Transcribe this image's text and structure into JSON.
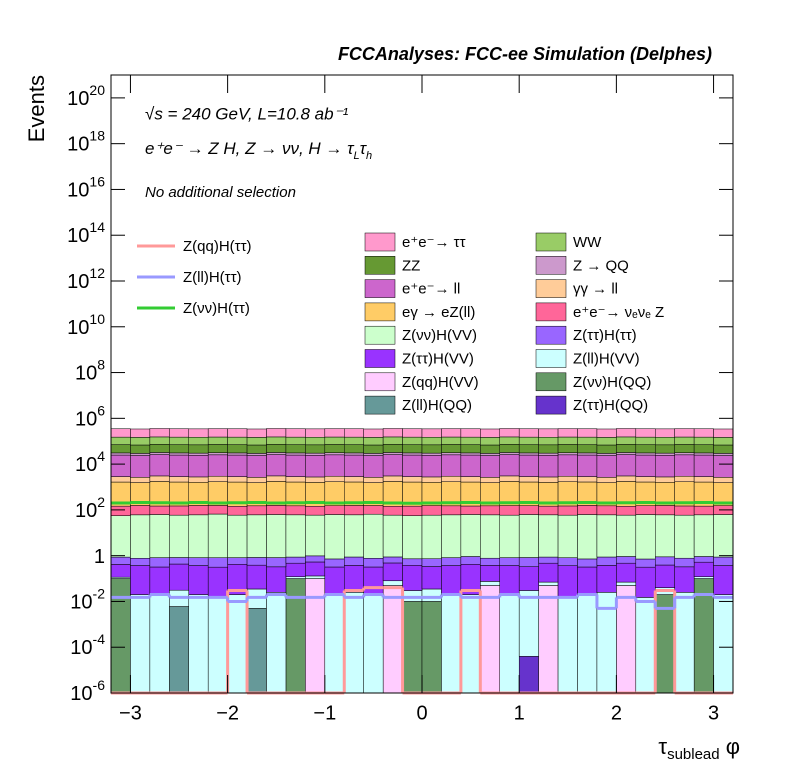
{
  "chart_data": {
    "type": "stacked_histogram",
    "title": "FCCAnalyses: FCC-ee Simulation (Delphes)",
    "annotations": [
      "√s = 240 GeV, L=10.8 ab⁻¹",
      "No additional selection"
    ],
    "process": [
      "e⁺e⁻ → Z H, Z → νν, H → τ",
      "L",
      "τ",
      "h"
    ],
    "x_label": [
      "τ",
      "sublead",
      " φ"
    ],
    "y_label": "Events",
    "log_y": true,
    "xlim": [
      -3.2,
      3.2
    ],
    "ylim": [
      1e-06,
      1e+21
    ],
    "xticks": [
      {
        "value": -3,
        "label": "−3"
      },
      {
        "value": -2,
        "label": "−2"
      },
      {
        "value": -1,
        "label": "−1"
      },
      0,
      1,
      2,
      3
    ],
    "yticks": [
      {
        "value": 1e-06,
        "label": "10^-6"
      },
      {
        "value": 0.0001,
        "label": "10^-4"
      },
      {
        "value": 0.01,
        "label": "10^-2"
      },
      1,
      {
        "value": 100.0,
        "label": "10^2"
      },
      {
        "value": 10000.0,
        "label": "10^4"
      },
      {
        "value": 1000000.0,
        "label": "10^6"
      },
      {
        "value": 100000000.0,
        "label": "10^8"
      },
      {
        "value": 10000000000.0,
        "label": "10^10"
      },
      {
        "value": 1000000000000.0,
        "label": "10^12"
      },
      {
        "value": 100000000000000.0,
        "label": "10^14"
      },
      {
        "value": 1e+16,
        "label": "10^16"
      },
      {
        "value": 1e+18,
        "label": "10^18"
      },
      {
        "value": 1e+20,
        "label": "10^20"
      }
    ],
    "bins": [
      -3.2,
      -3.0,
      -2.8,
      -2.6,
      -2.4,
      -2.2,
      -2.0,
      -1.8,
      -1.6,
      -1.4,
      -1.2,
      -1.0,
      -0.8,
      -0.6,
      -0.4,
      -0.2,
      0,
      0.2,
      0.4,
      0.6,
      0.8,
      1.0,
      1.2,
      1.4,
      1.6,
      1.8,
      2.0,
      2.2,
      2.4,
      2.6,
      2.8,
      3.0,
      3.2
    ],
    "series": [
      {
        "name": "Z(ττ)H(QQ)",
        "color": "#6633cc",
        "values": [
          0,
          0,
          0,
          0,
          0,
          0,
          0,
          0,
          0,
          0,
          0,
          0,
          0,
          0,
          0,
          0,
          0,
          0,
          0,
          0,
          0,
          4e-05,
          0,
          0,
          0,
          0,
          0,
          0,
          0,
          0,
          0,
          0
        ]
      },
      {
        "name": "Z(ll)H(QQ)",
        "color": "#669999",
        "values": [
          0,
          0,
          0,
          0.006,
          0,
          0,
          0,
          0.005,
          0,
          0,
          0,
          0,
          0,
          0,
          0,
          0,
          0,
          0,
          0,
          0,
          0,
          0,
          0,
          0,
          0,
          0,
          0,
          0,
          0,
          0,
          0,
          0
        ]
      },
      {
        "name": "Z(νν)H(QQ)",
        "color": "#669966",
        "values": [
          0.1,
          0,
          0,
          0,
          0,
          0,
          0,
          0,
          0,
          0.1,
          0,
          0,
          0,
          0,
          0,
          0.01,
          0.01,
          0,
          0,
          0,
          0,
          0,
          0,
          0,
          0,
          0,
          0,
          0,
          0.02,
          0,
          0.1,
          0
        ]
      },
      {
        "name": "Z(qq)H(VV)",
        "color": "#ffccff",
        "values": [
          0,
          0,
          0,
          0,
          0,
          0,
          0,
          0,
          0,
          0,
          0.1,
          0,
          0,
          0,
          0.05,
          0,
          0,
          0,
          0,
          0.05,
          0,
          0,
          0.05,
          0,
          0,
          0,
          0.05,
          0,
          0,
          0,
          0,
          0
        ]
      },
      {
        "name": "Z(ll)H(VV)",
        "color": "#ccffff",
        "values": [
          0.015,
          0.02,
          0.02,
          0.025,
          0.02,
          0.015,
          0.02,
          0.03,
          0.025,
          0.02,
          0.03,
          0.02,
          0.025,
          0.02,
          0.03,
          0.02,
          0.025,
          0.02,
          0.02,
          0.025,
          0.02,
          0.03,
          0.02,
          0.015,
          0.02,
          0.025,
          0.02,
          0.015,
          0.02,
          0.025,
          0.02,
          0.02
        ]
      },
      {
        "name": "Z(ττ)H(VV)",
        "color": "#9933ff",
        "values": [
          0.3,
          0.35,
          0.3,
          0.4,
          0.35,
          0.3,
          0.4,
          0.35,
          0.3,
          0.35,
          0.4,
          0.3,
          0.35,
          0.3,
          0.4,
          0.35,
          0.3,
          0.35,
          0.4,
          0.3,
          0.35,
          0.3,
          0.4,
          0.35,
          0.3,
          0.35,
          0.4,
          0.3,
          0.35,
          0.3,
          0.4,
          0.35
        ]
      },
      {
        "name": "Z(ττ)H(ττ)",
        "color": "#9966ff",
        "values": [
          0.45,
          0.4,
          0.5,
          0.4,
          0.45,
          0.5,
          0.4,
          0.45,
          0.5,
          0.4,
          0.45,
          0.4,
          0.5,
          0.45,
          0.4,
          0.35,
          0.4,
          0.45,
          0.5,
          0.4,
          0.45,
          0.5,
          0.4,
          0.45,
          0.4,
          0.5,
          0.45,
          0.4,
          0.5,
          0.45,
          0.4,
          0.5
        ]
      },
      {
        "name": "Z(νν)H(VV)",
        "color": "#ccffcc",
        "values": [
          55,
          60,
          62,
          58,
          60,
          65,
          58,
          60,
          62,
          60,
          58,
          62,
          60,
          64,
          58,
          55,
          58,
          60,
          62,
          60,
          58,
          62,
          60,
          58,
          62,
          60,
          58,
          62,
          60,
          58,
          60,
          62
        ]
      },
      {
        "name": "e⁺e⁻→ νₑνₑ Z",
        "color": "#ff6699",
        "values": [
          90,
          95,
          85,
          90,
          95,
          90,
          85,
          90,
          95,
          90,
          85,
          90,
          95,
          90,
          85,
          90,
          95,
          90,
          85,
          90,
          95,
          90,
          85,
          90,
          95,
          90,
          85,
          90,
          95,
          90,
          85,
          90
        ]
      },
      {
        "name": "eγ → eZ(ll)",
        "color": "#ffcc66",
        "values": [
          1500,
          1400,
          1600,
          1500,
          1450,
          1550,
          1500,
          1400,
          1600,
          1500,
          1450,
          1550,
          1500,
          1400,
          1600,
          1500,
          1450,
          1550,
          1500,
          1400,
          1600,
          1500,
          1450,
          1550,
          1500,
          1400,
          1600,
          1500,
          1450,
          1550,
          1500,
          1400
        ]
      },
      {
        "name": "γγ → ll",
        "color": "#ffcc99",
        "values": [
          1200,
          1100,
          1300,
          1200,
          1150,
          1250,
          1200,
          1100,
          1300,
          1200,
          1150,
          1250,
          1200,
          1100,
          1300,
          1200,
          1150,
          1250,
          1200,
          1100,
          1300,
          1200,
          1150,
          1250,
          1200,
          1100,
          1300,
          1200,
          1150,
          1250,
          1200,
          1100
        ]
      },
      {
        "name": "e⁺e⁻→ ll",
        "color": "#cc66cc",
        "values": [
          22000,
          21000,
          23000,
          22000,
          21500,
          22500,
          22000,
          21000,
          23000,
          22000,
          21500,
          22500,
          22000,
          21000,
          23000,
          22000,
          21500,
          22500,
          22000,
          21000,
          23000,
          22000,
          21500,
          22500,
          22000,
          21000,
          23000,
          22000,
          21500,
          22500,
          22000,
          21000
        ]
      },
      {
        "name": "Z → QQ",
        "color": "#cc99cc",
        "values": [
          6000,
          5800,
          6200,
          6000,
          5900,
          6100,
          6000,
          5800,
          6200,
          6000,
          5900,
          6100,
          6000,
          5800,
          6200,
          6000,
          5900,
          6100,
          6000,
          5800,
          6200,
          6000,
          5900,
          6100,
          6000,
          5800,
          6200,
          6000,
          5900,
          6100,
          6000,
          5800
        ]
      },
      {
        "name": "ZZ",
        "color": "#669933",
        "values": [
          40000,
          39000,
          41000,
          40000,
          39500,
          40500,
          40000,
          39000,
          41000,
          40000,
          39500,
          40500,
          40000,
          39000,
          41000,
          40000,
          39500,
          40500,
          40000,
          39000,
          41000,
          40000,
          39500,
          40500,
          40000,
          39000,
          41000,
          40000,
          39500,
          40500,
          40000,
          39000
        ]
      },
      {
        "name": "WW",
        "color": "#99cc66",
        "values": [
          80000,
          79000,
          81000,
          80000,
          79500,
          80500,
          80000,
          79000,
          81000,
          80000,
          79500,
          80500,
          80000,
          79000,
          81000,
          80000,
          79500,
          80500,
          80000,
          79000,
          81000,
          80000,
          79500,
          80500,
          80000,
          79000,
          81000,
          80000,
          79500,
          80500,
          80000,
          79000
        ]
      },
      {
        "name": "e⁺e⁻→ ττ",
        "color": "#ff99cc",
        "values": [
          200000,
          195000,
          205000,
          200000,
          198000,
          202000,
          200000,
          195000,
          205000,
          200000,
          198000,
          202000,
          200000,
          195000,
          205000,
          200000,
          198000,
          202000,
          200000,
          195000,
          205000,
          200000,
          198000,
          202000,
          200000,
          195000,
          205000,
          200000,
          198000,
          202000,
          200000,
          195000
        ]
      }
    ],
    "overlays": [
      {
        "name": "Z(qq)H(ττ)",
        "color": "#ff9999",
        "values": [
          0,
          0,
          0,
          0,
          0,
          0,
          0.03,
          0,
          0,
          0,
          0,
          0,
          0.03,
          0.04,
          0.04,
          0,
          0,
          0,
          0.03,
          0,
          0,
          0,
          0,
          0,
          0,
          0,
          0,
          0,
          0.03,
          0,
          0,
          0
        ]
      },
      {
        "name": "Z(ll)H(ττ)",
        "color": "#9999ff",
        "values": [
          0.015,
          0.015,
          0.02,
          0.015,
          0.015,
          0.015,
          0.01,
          0.015,
          0.02,
          0.015,
          0.015,
          0.02,
          0.015,
          0.02,
          0.015,
          0.015,
          0.015,
          0.02,
          0.015,
          0.015,
          0.02,
          0.015,
          0.015,
          0.015,
          0.02,
          0.005,
          0.015,
          0.01,
          0.005,
          0.015,
          0.02,
          0.015
        ]
      },
      {
        "name": "Z(νν)H(ττ)",
        "color": "#33cc33",
        "values": [
          200,
          210,
          205,
          200,
          210,
          200,
          205,
          210,
          200,
          205,
          210,
          200,
          205,
          210,
          200,
          195,
          200,
          205,
          210,
          200,
          205,
          210,
          200,
          205,
          210,
          200,
          205,
          210,
          200,
          205,
          210,
          200
        ]
      }
    ]
  }
}
